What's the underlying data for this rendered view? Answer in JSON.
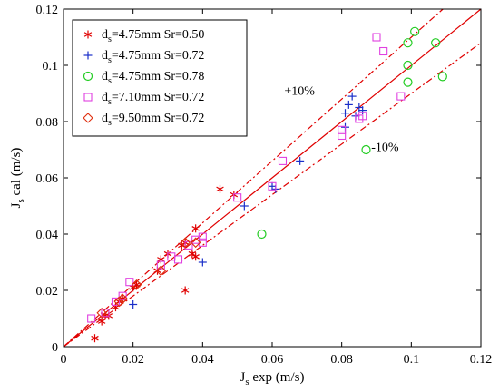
{
  "chart_data": {
    "type": "scatter",
    "xlabel": "J_s exp (m/s)",
    "ylabel": "J_s cal (m/s)",
    "xlabel_main": "J",
    "xlabel_sub": "s",
    "xlabel_rest": " exp (m/s)",
    "ylabel_main": "J",
    "ylabel_sub": "s",
    "ylabel_rest": " cal (m/s)",
    "xlim": [
      0,
      0.12
    ],
    "ylim": [
      0,
      0.12
    ],
    "xticks": [
      "0",
      "0.02",
      "0.04",
      "0.06",
      "0.08",
      "0.1",
      "0.12"
    ],
    "yticks": [
      "0",
      "0.02",
      "0.04",
      "0.06",
      "0.08",
      "0.1",
      "0.12"
    ],
    "reference_lines": [
      {
        "kind": "equality",
        "slope": 1.0,
        "color": "#e00000",
        "style": "solid"
      },
      {
        "kind": "+10%",
        "slope": 1.1,
        "color": "#e00000",
        "style": "dashdot"
      },
      {
        "kind": "-10%",
        "slope": 0.9,
        "color": "#e00000",
        "style": "dashdot"
      }
    ],
    "annotations": [
      {
        "text": "+10%",
        "x": 0.0635,
        "y": 0.0895
      },
      {
        "text": "-10%",
        "x": 0.0885,
        "y": 0.0695
      }
    ],
    "legend_position": "top-left",
    "series": [
      {
        "name_main": "d",
        "name_sub": "s",
        "name_rest": "=4.75mm Sr=0.50",
        "marker": "asterisk",
        "color": "#e00000",
        "points": [
          [
            0.009,
            0.003
          ],
          [
            0.011,
            0.009
          ],
          [
            0.012,
            0.011
          ],
          [
            0.013,
            0.011
          ],
          [
            0.015,
            0.014
          ],
          [
            0.016,
            0.016
          ],
          [
            0.017,
            0.017
          ],
          [
            0.02,
            0.021
          ],
          [
            0.021,
            0.022
          ],
          [
            0.027,
            0.027
          ],
          [
            0.028,
            0.031
          ],
          [
            0.03,
            0.033
          ],
          [
            0.034,
            0.036
          ],
          [
            0.035,
            0.037
          ],
          [
            0.035,
            0.02
          ],
          [
            0.037,
            0.033
          ],
          [
            0.038,
            0.032
          ],
          [
            0.038,
            0.042
          ],
          [
            0.045,
            0.056
          ],
          [
            0.049,
            0.054
          ]
        ]
      },
      {
        "name_main": "d",
        "name_sub": "s",
        "name_rest": "=4.75mm Sr=0.72",
        "marker": "plus",
        "color": "#1a2fc9",
        "points": [
          [
            0.02,
            0.015
          ],
          [
            0.04,
            0.03
          ],
          [
            0.052,
            0.05
          ],
          [
            0.06,
            0.057
          ],
          [
            0.061,
            0.056
          ],
          [
            0.068,
            0.066
          ],
          [
            0.081,
            0.078
          ],
          [
            0.081,
            0.083
          ],
          [
            0.082,
            0.086
          ],
          [
            0.083,
            0.089
          ],
          [
            0.084,
            0.082
          ],
          [
            0.085,
            0.085
          ],
          [
            0.086,
            0.084
          ]
        ]
      },
      {
        "name_main": "d",
        "name_sub": "s",
        "name_rest": "=4.75mm Sr=0.78",
        "marker": "circle",
        "color": "#22cc22",
        "points": [
          [
            0.057,
            0.04
          ],
          [
            0.087,
            0.07
          ],
          [
            0.099,
            0.094
          ],
          [
            0.099,
            0.1
          ],
          [
            0.099,
            0.108
          ],
          [
            0.101,
            0.112
          ],
          [
            0.107,
            0.108
          ],
          [
            0.109,
            0.096
          ]
        ]
      },
      {
        "name_main": "d",
        "name_sub": "s",
        "name_rest": "=7.10mm Sr=0.72",
        "marker": "square",
        "color": "#e040e0",
        "points": [
          [
            0.008,
            0.01
          ],
          [
            0.012,
            0.012
          ],
          [
            0.015,
            0.016
          ],
          [
            0.017,
            0.018
          ],
          [
            0.019,
            0.023
          ],
          [
            0.028,
            0.029
          ],
          [
            0.031,
            0.032
          ],
          [
            0.033,
            0.031
          ],
          [
            0.036,
            0.036
          ],
          [
            0.038,
            0.038
          ],
          [
            0.04,
            0.039
          ],
          [
            0.04,
            0.037
          ],
          [
            0.05,
            0.053
          ],
          [
            0.06,
            0.057
          ],
          [
            0.063,
            0.066
          ],
          [
            0.08,
            0.075
          ],
          [
            0.08,
            0.077
          ],
          [
            0.085,
            0.081
          ],
          [
            0.086,
            0.082
          ],
          [
            0.09,
            0.11
          ],
          [
            0.092,
            0.105
          ],
          [
            0.097,
            0.089
          ]
        ]
      },
      {
        "name_main": "d",
        "name_sub": "s",
        "name_rest": "=9.50mm Sr=0.72",
        "marker": "diamond",
        "color": "#e03010",
        "points": [
          [
            0.011,
            0.012
          ],
          [
            0.016,
            0.016
          ],
          [
            0.017,
            0.017
          ],
          [
            0.021,
            0.022
          ],
          [
            0.028,
            0.027
          ],
          [
            0.035,
            0.037
          ],
          [
            0.038,
            0.037
          ]
        ]
      }
    ]
  }
}
